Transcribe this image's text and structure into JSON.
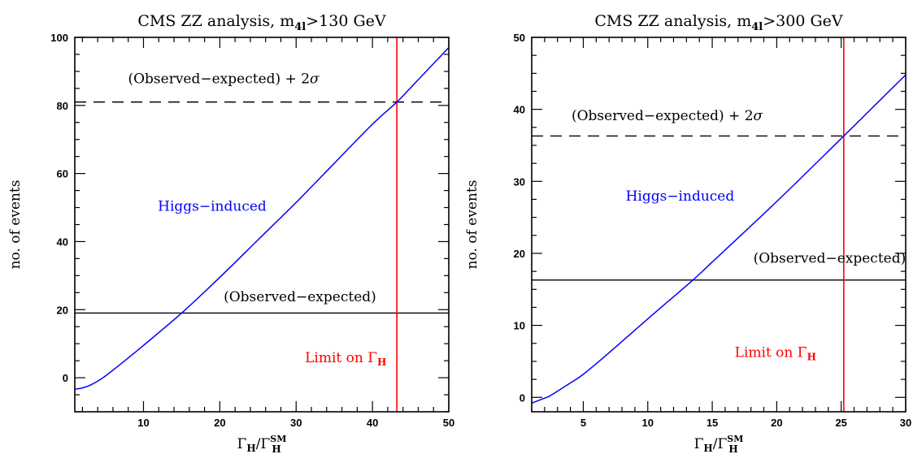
{
  "chart_data": [
    {
      "type": "line",
      "title": "CMS ZZ analysis, m",
      "title_subscript": "4l",
      "title_suffix": ">130 GeV",
      "xlabel_main": "Γ",
      "xlabel_sub": "H",
      "xlabel_slash": "/Γ",
      "xlabel_sup": "SM",
      "xlabel_sub2": "H",
      "ylabel": "no. of events",
      "xlim": [
        1,
        50
      ],
      "ylim": [
        -10,
        100
      ],
      "x_ticks": [
        10,
        20,
        30,
        40,
        50
      ],
      "y_ticks": [
        0,
        20,
        40,
        60,
        80,
        100
      ],
      "x_tick_labels": [
        "10",
        "20",
        "30",
        "40",
        "50"
      ],
      "y_tick_labels": [
        "0",
        "20",
        "40",
        "60",
        "80",
        "100"
      ],
      "series": [
        {
          "color": "#0000ff",
          "x": [
            1,
            2,
            3,
            4,
            5,
            7,
            10,
            15,
            20,
            25,
            30,
            35,
            40,
            43.2,
            45,
            50
          ],
          "y": [
            -3.4,
            -3.0,
            -2.2,
            -1.0,
            0.5,
            4.0,
            9.5,
            19.0,
            29.5,
            40.5,
            51.5,
            63.0,
            74.5,
            81.0,
            85.2,
            97.0
          ]
        }
      ],
      "hlines": [
        {
          "y": 19,
          "style": "solid",
          "color": "#000000"
        },
        {
          "y": 81,
          "style": "dashed",
          "color": "#000000"
        }
      ],
      "vlines": [
        {
          "x": 43.2,
          "color": "#ff0000"
        }
      ],
      "annotations": {
        "higgs": {
          "text": "Higgs−induced",
          "color": "#0000ff",
          "x": 19,
          "y": 49
        },
        "obs": {
          "text": "(Observed−expected)",
          "color": "#000000",
          "x": 30.5,
          "y": 22.5
        },
        "obs2": {
          "text": "(Observed−expected) + 2",
          "sigma": "σ",
          "color": "#000000",
          "x": 20.5,
          "y": 86.5
        },
        "limit": {
          "text": "Limit on Γ",
          "sub": "H",
          "color": "#ff0000",
          "x": 36.5,
          "y": 4.5
        }
      }
    },
    {
      "type": "line",
      "title": "CMS ZZ analysis, m",
      "title_subscript": "4l",
      "title_suffix": ">300 GeV",
      "xlabel_main": "Γ",
      "xlabel_sub": "H",
      "xlabel_slash": "/Γ",
      "xlabel_sup": "SM",
      "xlabel_sub2": "H",
      "ylabel": "no. of events",
      "xlim": [
        1,
        30
      ],
      "ylim": [
        -2,
        50
      ],
      "x_ticks": [
        5,
        10,
        15,
        20,
        25,
        30
      ],
      "y_ticks": [
        0,
        10,
        20,
        30,
        40,
        50
      ],
      "x_tick_labels": [
        "5",
        "10",
        "15",
        "20",
        "25",
        "30"
      ],
      "y_tick_labels": [
        "0",
        "10",
        "20",
        "30",
        "40",
        "50"
      ],
      "series": [
        {
          "color": "#0000ff",
          "x": [
            1,
            2,
            2.5,
            4,
            5,
            7,
            10,
            13.5,
            15,
            20,
            25.2,
            30
          ],
          "y": [
            -0.8,
            -0.1,
            0.3,
            2.0,
            3.2,
            6.2,
            10.9,
            16.3,
            18.8,
            27.2,
            36.3,
            44.8
          ]
        }
      ],
      "hlines": [
        {
          "y": 16.3,
          "style": "solid",
          "color": "#000000"
        },
        {
          "y": 36.3,
          "style": "dashed",
          "color": "#000000"
        }
      ],
      "vlines": [
        {
          "x": 25.2,
          "color": "#ff0000"
        }
      ],
      "annotations": {
        "higgs": {
          "text": "Higgs−induced",
          "color": "#0000ff",
          "x": 12.5,
          "y": 27.3
        },
        "obs": {
          "text": "(Observed−expected)",
          "color": "#000000",
          "x": 24.1,
          "y": 18.7
        },
        "obs2": {
          "text": "(Observed−expected) + 2",
          "sigma": "σ",
          "color": "#000000",
          "x": 11.5,
          "y": 38.5
        },
        "limit": {
          "text": "Limit on Γ",
          "sub": "H",
          "color": "#ff0000",
          "x": 19.9,
          "y": 5.6
        }
      }
    }
  ]
}
